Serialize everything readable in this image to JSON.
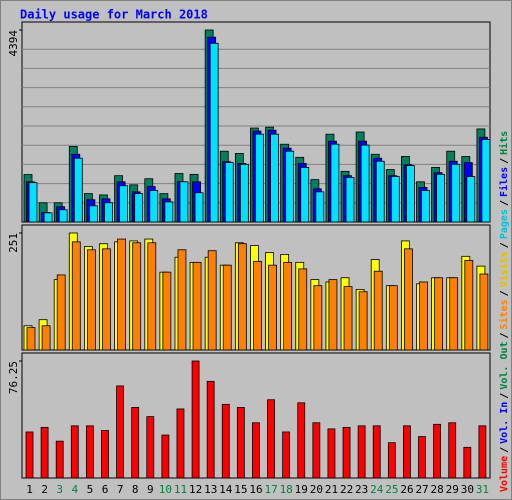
{
  "chart_data": [
    {
      "type": "bar",
      "title": "Daily usage for March 2018",
      "categories": [
        "1",
        "2",
        "3",
        "4",
        "5",
        "6",
        "7",
        "8",
        "9",
        "10",
        "11",
        "12",
        "13",
        "14",
        "15",
        "16",
        "17",
        "18",
        "19",
        "20",
        "21",
        "22",
        "23",
        "24",
        "25",
        "26",
        "27",
        "28",
        "29",
        "30",
        "31"
      ],
      "category_colors": [
        "#000000",
        "#000000",
        "#008040",
        "#008040",
        "#000000",
        "#000000",
        "#000000",
        "#000000",
        "#000000",
        "#008040",
        "#008040",
        "#000000",
        "#000000",
        "#000000",
        "#000000",
        "#000000",
        "#008040",
        "#008040",
        "#000000",
        "#000000",
        "#000000",
        "#000000",
        "#000000",
        "#008040",
        "#008040",
        "#000000",
        "#000000",
        "#000000",
        "#000000",
        "#000000",
        "#008040"
      ],
      "ylim": [
        0,
        4394
      ],
      "yticks": [
        4394
      ],
      "grid": true,
      "series": [
        {
          "name": "Hits",
          "color": "#00805c",
          "values": [
            1086,
            440,
            440,
            1730,
            650,
            620,
            1060,
            850,
            990,
            650,
            1110,
            1090,
            4394,
            1620,
            1570,
            2150,
            2170,
            1780,
            1480,
            970,
            2010,
            1160,
            2060,
            1550,
            1200,
            1500,
            920,
            1250,
            1620,
            1500,
            2130
          ]
        },
        {
          "name": "Files",
          "color": "#0000ff",
          "values": [
            920,
            220,
            350,
            1550,
            510,
            530,
            920,
            690,
            810,
            530,
            920,
            920,
            4230,
            1380,
            1340,
            2080,
            2100,
            1690,
            1340,
            760,
            1850,
            1060,
            1850,
            1460,
            1060,
            1310,
            790,
            1130,
            1390,
            1360,
            1940
          ]
        },
        {
          "name": "Pages",
          "color": "#00e0ff",
          "values": [
            900,
            210,
            280,
            1460,
            370,
            440,
            830,
            650,
            720,
            460,
            920,
            670,
            4090,
            1360,
            1320,
            2010,
            2010,
            1620,
            1250,
            690,
            1780,
            1020,
            1760,
            1390,
            1040,
            1290,
            720,
            1090,
            1320,
            1040,
            1890
          ]
        }
      ]
    },
    {
      "type": "bar",
      "ylim": [
        0,
        251
      ],
      "yticks": [
        251
      ],
      "series": [
        {
          "name": "Visits",
          "color": "#ffff00",
          "values": [
            52,
            65,
            151,
            251,
            222,
            228,
            232,
            234,
            238,
            167,
            199,
            188,
            199,
            182,
            230,
            224,
            209,
            205,
            188,
            151,
            146,
            155,
            130,
            194,
            138,
            234,
            142,
            155,
            155,
            201,
            180
          ]
        },
        {
          "name": "Sites",
          "color": "#ff8000",
          "values": [
            48,
            52,
            161,
            232,
            215,
            217,
            238,
            230,
            230,
            167,
            215,
            188,
            213,
            182,
            228,
            190,
            182,
            188,
            174,
            138,
            151,
            136,
            125,
            169,
            138,
            217,
            146,
            155,
            155,
            192,
            163
          ]
        }
      ]
    },
    {
      "type": "bar",
      "ylim": [
        0,
        76.25
      ],
      "yticks": [
        76.25
      ],
      "series": [
        {
          "name": "Volume",
          "color": "#ff0000",
          "values": [
            30,
            33,
            24,
            34,
            34,
            31,
            60,
            46,
            40,
            28,
            45,
            76.25,
            63,
            48,
            46,
            36,
            51,
            30,
            49,
            36,
            32,
            33,
            34,
            34,
            23,
            34,
            27,
            35,
            36,
            20,
            34
          ]
        }
      ]
    }
  ],
  "legend": {
    "separator": "/",
    "items": [
      {
        "name": "Volume",
        "color": "#ff0000"
      },
      {
        "name": "Vol. In",
        "color": "#0000ff"
      },
      {
        "name": "Vol. Out",
        "color": "#008040"
      },
      {
        "name": "Sites",
        "color": "#ff8000"
      },
      {
        "name": "Visits",
        "color": "#e0c000"
      },
      {
        "name": "Pages",
        "color": "#00c0e0"
      },
      {
        "name": "Files",
        "color": "#0000ff"
      },
      {
        "name": "Hits",
        "color": "#008040"
      }
    ]
  }
}
